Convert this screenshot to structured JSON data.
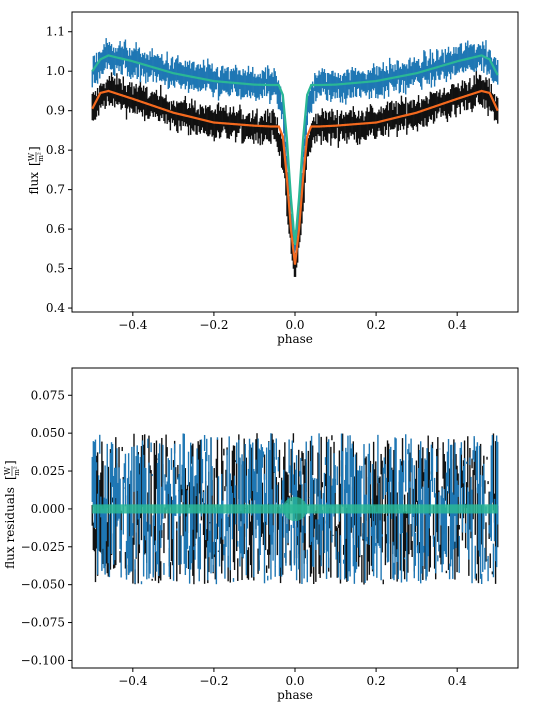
{
  "chart_data": [
    {
      "type": "line",
      "xlabel": "phase",
      "ylabel": "flux [W/m²]",
      "ylabel_parts": {
        "name": "flux",
        "num": "W",
        "den": "m²"
      },
      "xlim": [
        -0.55,
        0.55
      ],
      "ylim": [
        0.39,
        1.15
      ],
      "xticks": [
        -0.4,
        -0.2,
        0.0,
        0.2,
        0.4
      ],
      "xtick_labels": [
        "−0.4",
        "−0.2",
        "0.0",
        "0.2",
        "0.4"
      ],
      "yticks": [
        0.4,
        0.5,
        0.6,
        0.7,
        0.8,
        0.9,
        1.0,
        1.1
      ],
      "ytick_labels": [
        "0.4",
        "0.5",
        "0.6",
        "0.7",
        "0.8",
        "0.9",
        "1.0",
        "1.1"
      ],
      "grid": false,
      "colors": {
        "dataset_a": "#1f77b4",
        "dataset_b": "#111111",
        "model_a": "#2ab795",
        "model_b": "#f4691e"
      },
      "series": [
        {
          "kind": "errorbar",
          "color_key": "dataset_a",
          "x": [
            -0.5,
            -0.47,
            -0.45,
            -0.4,
            -0.3,
            -0.2,
            -0.1,
            -0.05,
            -0.03,
            -0.02,
            -0.01,
            0.0,
            0.01,
            0.02,
            0.03,
            0.05,
            0.1,
            0.2,
            0.3,
            0.4,
            0.45,
            0.47,
            0.5
          ],
          "y": [
            0.995,
            1.035,
            1.04,
            1.025,
            0.995,
            0.975,
            0.965,
            0.965,
            0.9,
            0.76,
            0.64,
            0.56,
            0.64,
            0.76,
            0.9,
            0.965,
            0.965,
            0.975,
            0.995,
            1.025,
            1.04,
            1.035,
            0.99
          ],
          "yerr": 0.028
        },
        {
          "kind": "errorbar",
          "color_key": "dataset_b",
          "x": [
            -0.5,
            -0.47,
            -0.45,
            -0.4,
            -0.3,
            -0.2,
            -0.1,
            -0.05,
            -0.03,
            -0.02,
            -0.01,
            0.0,
            0.01,
            0.02,
            0.03,
            0.05,
            0.1,
            0.2,
            0.3,
            0.4,
            0.45,
            0.47,
            0.5
          ],
          "y": [
            0.9,
            0.945,
            0.95,
            0.93,
            0.895,
            0.87,
            0.86,
            0.86,
            0.8,
            0.68,
            0.57,
            0.5,
            0.57,
            0.68,
            0.8,
            0.86,
            0.86,
            0.87,
            0.895,
            0.93,
            0.95,
            0.945,
            0.9
          ],
          "yerr": 0.03
        },
        {
          "kind": "line",
          "color_key": "model_a",
          "x": [
            -0.5,
            -0.48,
            -0.46,
            -0.4,
            -0.3,
            -0.2,
            -0.1,
            -0.06,
            -0.04,
            -0.03,
            -0.02,
            -0.01,
            0.0,
            0.01,
            0.02,
            0.03,
            0.04,
            0.06,
            0.1,
            0.2,
            0.3,
            0.4,
            0.46,
            0.48,
            0.5
          ],
          "y": [
            1.0,
            1.03,
            1.04,
            1.025,
            0.995,
            0.975,
            0.966,
            0.965,
            0.965,
            0.94,
            0.83,
            0.68,
            0.56,
            0.68,
            0.83,
            0.94,
            0.965,
            0.965,
            0.966,
            0.975,
            0.995,
            1.025,
            1.04,
            1.03,
            0.99
          ]
        },
        {
          "kind": "line",
          "color_key": "model_b",
          "x": [
            -0.5,
            -0.48,
            -0.46,
            -0.4,
            -0.3,
            -0.2,
            -0.1,
            -0.06,
            -0.04,
            -0.03,
            -0.02,
            -0.01,
            0.0,
            0.01,
            0.02,
            0.03,
            0.04,
            0.06,
            0.1,
            0.2,
            0.3,
            0.4,
            0.46,
            0.48,
            0.5
          ],
          "y": [
            0.905,
            0.945,
            0.95,
            0.93,
            0.895,
            0.87,
            0.862,
            0.86,
            0.86,
            0.835,
            0.73,
            0.6,
            0.51,
            0.6,
            0.73,
            0.835,
            0.86,
            0.86,
            0.862,
            0.87,
            0.895,
            0.93,
            0.95,
            0.945,
            0.9
          ]
        }
      ]
    },
    {
      "type": "scatter",
      "xlabel": "phase",
      "ylabel": "flux residuals [W/m²]",
      "ylabel_parts": {
        "name": "flux residuals",
        "num": "W",
        "den": "m²"
      },
      "xlim": [
        -0.55,
        0.55
      ],
      "ylim": [
        -0.105,
        0.093
      ],
      "xticks": [
        -0.4,
        -0.2,
        0.0,
        0.2,
        0.4
      ],
      "xtick_labels": [
        "−0.4",
        "−0.2",
        "0.0",
        "0.2",
        "0.4"
      ],
      "yticks": [
        -0.1,
        -0.075,
        -0.05,
        -0.025,
        0.0,
        0.025,
        0.05,
        0.075
      ],
      "ytick_labels": [
        "−0.100",
        "−0.075",
        "−0.050",
        "−0.025",
        "0.000",
        "0.025",
        "0.050",
        "0.075"
      ],
      "grid": false,
      "residual_amplitude": 0.05,
      "colors": {
        "dataset_a": "#1f77b4",
        "dataset_b": "#111111",
        "model_band": "#2ab795"
      },
      "model_band": {
        "x": [
          -0.5,
          0.5
        ],
        "halfwidth": 0.003,
        "dip_x": 0.0,
        "dip_halfwidth": 0.008
      }
    }
  ]
}
